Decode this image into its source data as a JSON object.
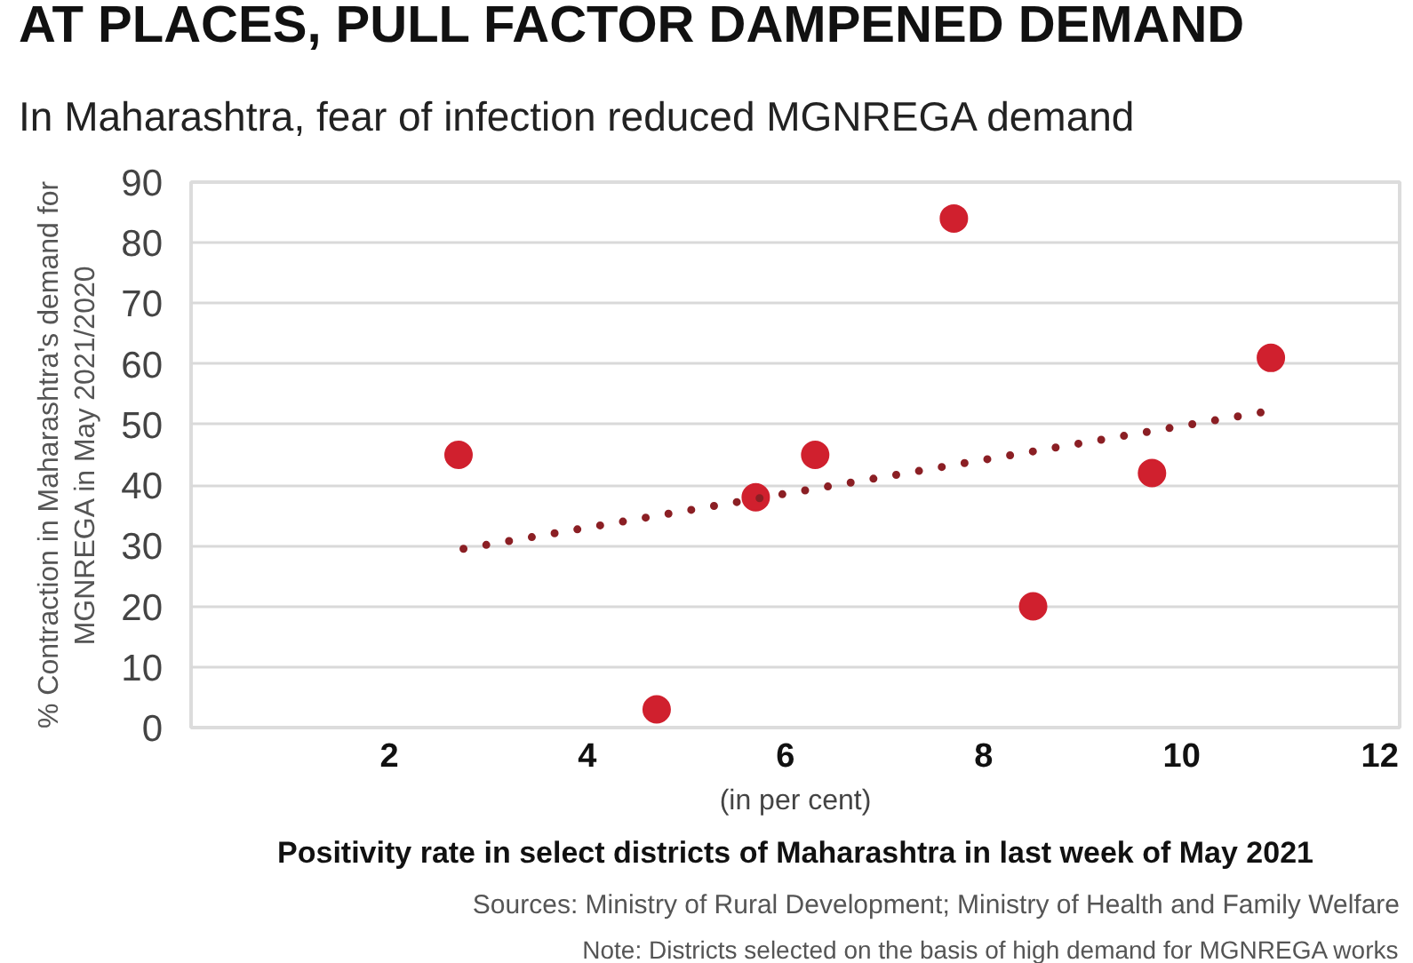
{
  "chart_data": {
    "type": "scatter",
    "title": "AT PLACES, PULL FACTOR DAMPENED DEMAND",
    "subtitle": "In Maharashtra, fear of infection reduced MGNREGA demand",
    "xlabel": "Positivity rate in select districts of Maharashtra in last week of May 2021",
    "ylabel": "% Contraction in Maharashtra's demand for MGNREGA in May 2021/2020",
    "annotations": [
      "(in per cent)",
      "Sources: Ministry of Rural Development; Ministry of Health and Family Welfare",
      "Note: Districts selected on the basis of high demand for MGNREGA works"
    ],
    "series": [
      {
        "color": "#d0202e",
        "marker": "circle",
        "x": [
          2.7,
          4.7,
          5.7,
          6.3,
          7.7,
          8.5,
          9.7,
          10.9
        ],
        "values": [
          45,
          3,
          38,
          45,
          84,
          20,
          42,
          61
        ]
      },
      {
        "type": "line",
        "color": "#8b1f24",
        "x": [
          2.75,
          10.8
        ],
        "values": [
          29.5,
          52
        ],
        "line_style": "dotted"
      }
    ],
    "xlim": [
      0,
      12.2
    ],
    "xticks": [
      2,
      4,
      6,
      8,
      10,
      12
    ],
    "ylim": [
      0,
      90
    ],
    "yticks": [
      0,
      10,
      20,
      30,
      40,
      50,
      60,
      70,
      80,
      90
    ],
    "grid": "y"
  }
}
